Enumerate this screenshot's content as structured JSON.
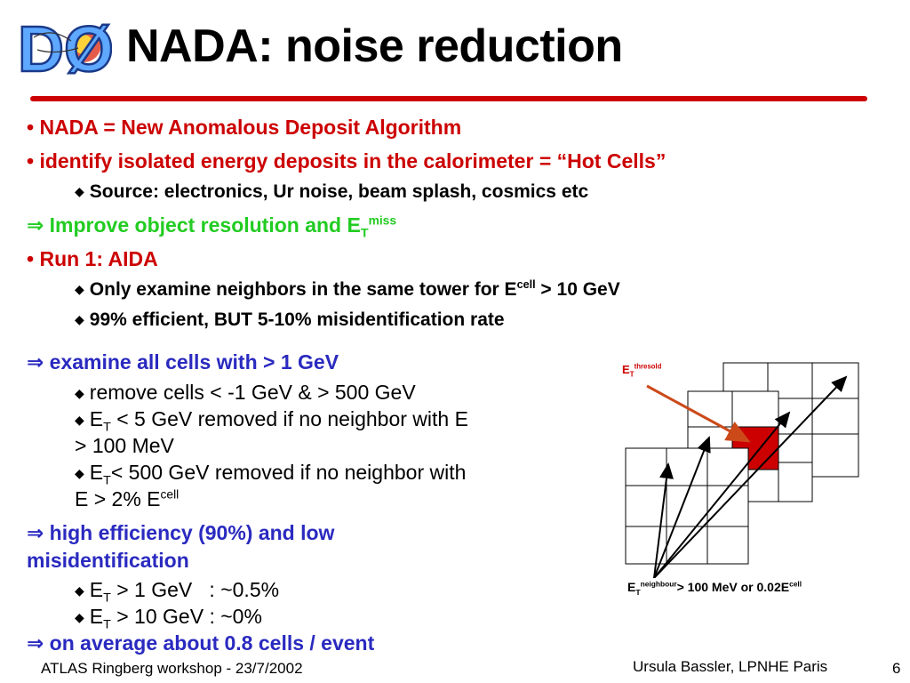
{
  "title": "NADA: noise reduction",
  "logo": {
    "letters": "DØ",
    "colors": {
      "letters": "#5fa8ff",
      "outline": "#1a3a8a",
      "burst": "#e0402a"
    }
  },
  "bullets": {
    "b1": {
      "bullet": "•",
      "text": "NADA = New Anomalous Deposit Algorithm"
    },
    "b2": {
      "bullet": "•",
      "text": "identify isolated energy deposits in the calorimeter = “Hot Cells”"
    },
    "b2_sub": {
      "bullet": "◆",
      "text": "Source: electronics, Ur noise, beam splash, cosmics etc"
    },
    "b3": {
      "arrow": "⇒",
      "text": "Improve object resolution and E",
      "sub": "T",
      "sup": "miss"
    },
    "b4": {
      "bullet": "•",
      "text": "Run 1: AIDA"
    },
    "b4_sub1": {
      "bullet": "◆",
      "text_pre": "Only examine neighbors in the same tower for E",
      "sup": "cell",
      "text_post": " > 10 GeV"
    },
    "b4_sub2": {
      "bullet": "◆",
      "text": "99% efficient, BUT 5-10% misidentification rate"
    },
    "b5": {
      "arrow": "⇒",
      "text": "examine all cells with > 1 GeV"
    },
    "b5_sub1": {
      "bullet": "◆",
      "text": "remove cells < -1 GeV & > 500 GeV"
    },
    "b5_sub2": {
      "bullet": "◆",
      "pre": "E",
      "sub": "T",
      "line1": " < 5 GeV removed if no neighbor with E",
      "line2": "> 100 MeV"
    },
    "b5_sub3": {
      "bullet": "◆",
      "pre": "E",
      "sub": "T",
      "line1": "< 500 GeV removed if no neighbor with",
      "line2_pre": "E > 2% E",
      "sup": "cell"
    },
    "b6": {
      "arrow": "⇒",
      "line1": "high efficiency (90%) and low",
      "line2": "misidentification"
    },
    "b6_sub1": {
      "bullet": "◆",
      "pre": "E",
      "sub": "T",
      "text": " > 1 GeV   : ~0.5%"
    },
    "b6_sub2": {
      "bullet": "◆",
      "pre": "E",
      "sub": "T",
      "text": " > 10 GeV : ~0%"
    },
    "b7": {
      "arrow": "⇒",
      "text": "on average about 0.8 cells / event"
    }
  },
  "diagram": {
    "threshold_label": {
      "pre": "E",
      "sub": "T",
      "sup": "thresold"
    },
    "neighbour_label": {
      "pre": "E",
      "sub": "T",
      "sup": "neighbour",
      "mid": "> 100 MeV or 0.02E",
      "sup2": "cell"
    },
    "colors": {
      "hot_cell": "#cc0000",
      "arrow_threshold": "#cc4a1a",
      "threshold_text": "#cc0000",
      "grid": "#000000"
    }
  },
  "footer": {
    "left": "ATLAS Ringberg workshop - 23/7/2002",
    "right": "Ursula Bassler, LPNHE Paris",
    "page": "6"
  }
}
